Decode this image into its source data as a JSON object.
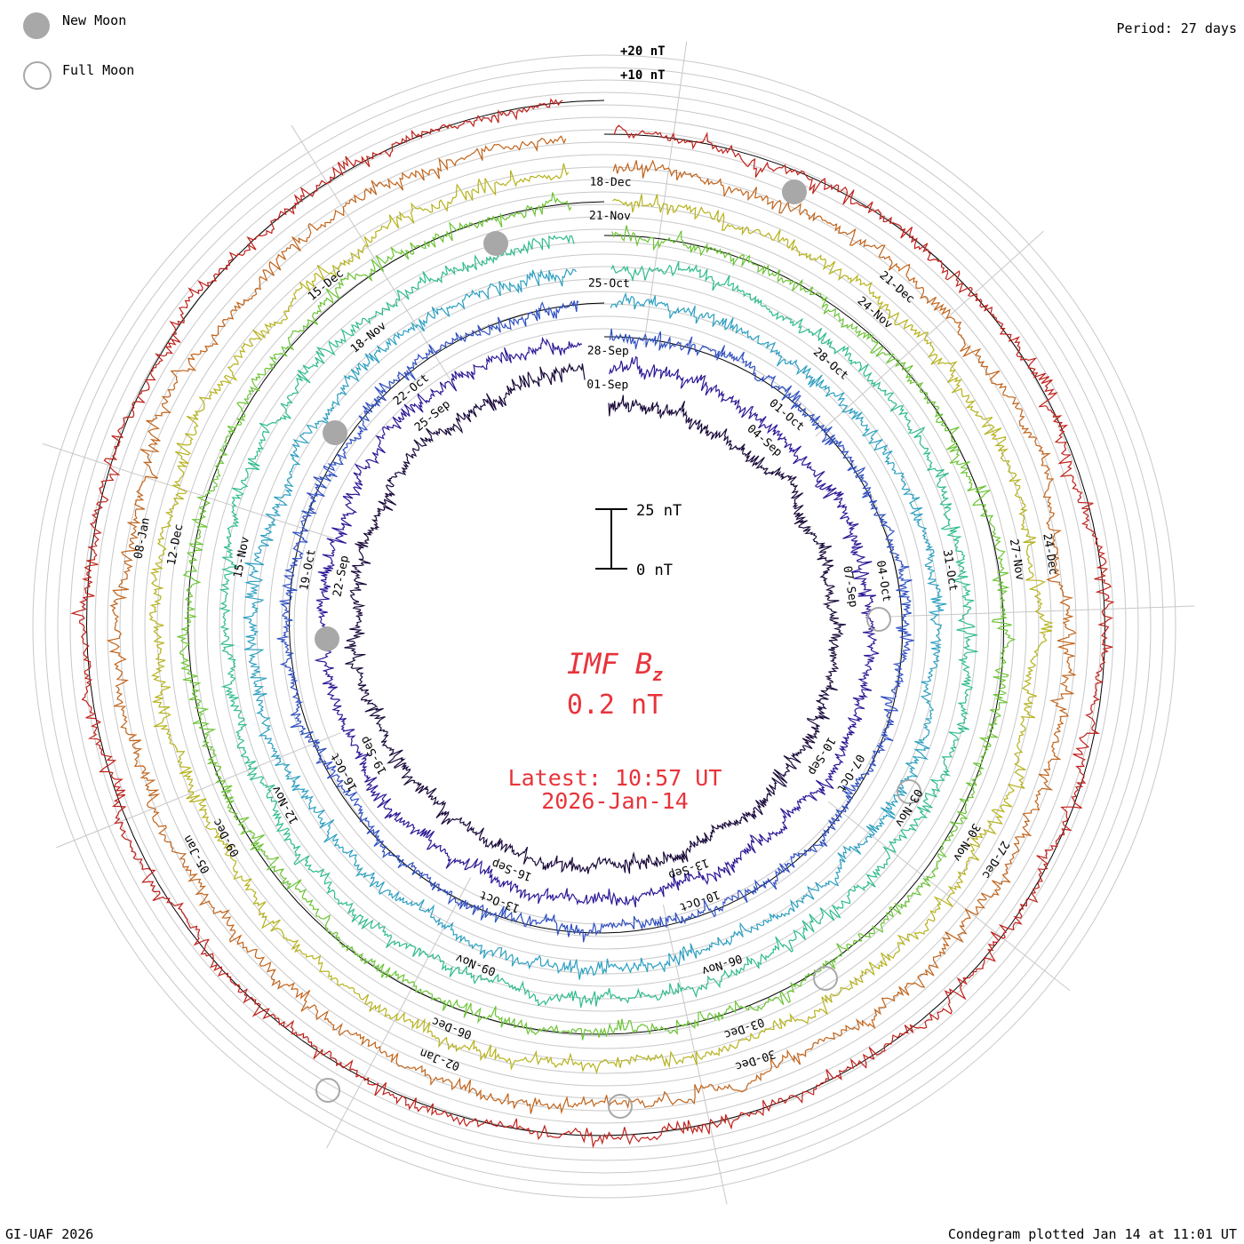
{
  "legend": {
    "new_moon_label": "New Moon",
    "full_moon_label": "Full Moon"
  },
  "period_label": "Period: 27 days",
  "footer": {
    "left": "GI-UAF 2026",
    "right": "Condegram plotted Jan 14 at 11:01 UT"
  },
  "center": {
    "title_main": "IMF B",
    "title_sub": "z",
    "value": "0.2 nT",
    "latest": "Latest: 10:57 UT",
    "date": "2026-Jan-14"
  },
  "scale": {
    "top_label": "25 nT",
    "bottom_label": "0 nT",
    "ring_labels": [
      "+20 nT",
      "+10 nT"
    ]
  },
  "colors": {
    "text_red": "#e8333a",
    "moon_gray": "#a8a8a8",
    "grid": "#c8c8c8"
  },
  "chart_data": {
    "type": "condegram",
    "title": "IMF Bz",
    "units": "nT",
    "period_days": 27,
    "series": [
      {
        "name": "rotation 1",
        "color": "#1a0a3a",
        "date_labels": [
          "01-Sep",
          "04-Sep",
          "07-Sep",
          "10-Sep",
          "13-Sep",
          "16-Sep",
          "19-Sep",
          "22-Sep",
          "25-Sep"
        ]
      },
      {
        "name": "rotation 2",
        "color": "#2a1896",
        "date_labels": [
          "28-Sep",
          "01-Oct",
          "04-Oct",
          "07-Oct",
          "10-Oct",
          "13-Oct",
          "16-Oct",
          "19-Oct",
          "22-Oct"
        ]
      },
      {
        "name": "rotation 3",
        "color": "#2f4fc0",
        "date_labels": []
      },
      {
        "name": "rotation 4",
        "color": "#2c9fc0",
        "date_labels": [
          "25-Oct",
          "28-Oct",
          "31-Oct",
          "03-Nov",
          "06-Nov",
          "09-Nov",
          "12-Nov",
          "15-Nov",
          "18-Nov"
        ]
      },
      {
        "name": "rotation 5",
        "color": "#2ebb8e",
        "date_labels": []
      },
      {
        "name": "rotation 6",
        "color": "#6cc435",
        "date_labels": [
          "21-Nov",
          "24-Nov",
          "27-Nov",
          "30-Nov",
          "03-Dec",
          "06-Dec",
          "09-Dec",
          "12-Dec",
          "15-Dec"
        ]
      },
      {
        "name": "rotation 7",
        "color": "#b6b21d",
        "date_labels": [
          "18-Dec",
          "21-Dec",
          "24-Dec",
          "27-Dec",
          "30-Dec",
          "02-Jan",
          "05-Jan",
          "08-Jan"
        ]
      },
      {
        "name": "rotation 8",
        "color": "#c1631a",
        "date_labels": []
      },
      {
        "name": "rotation 9",
        "color": "#c0201a",
        "date_labels": []
      }
    ],
    "scale_bar": {
      "low": 0,
      "high": 25
    },
    "ring_scale": [
      10,
      20
    ],
    "latest_value": 0.2,
    "latest_time": "10:57 UT",
    "latest_date": "2026-Jan-14"
  }
}
